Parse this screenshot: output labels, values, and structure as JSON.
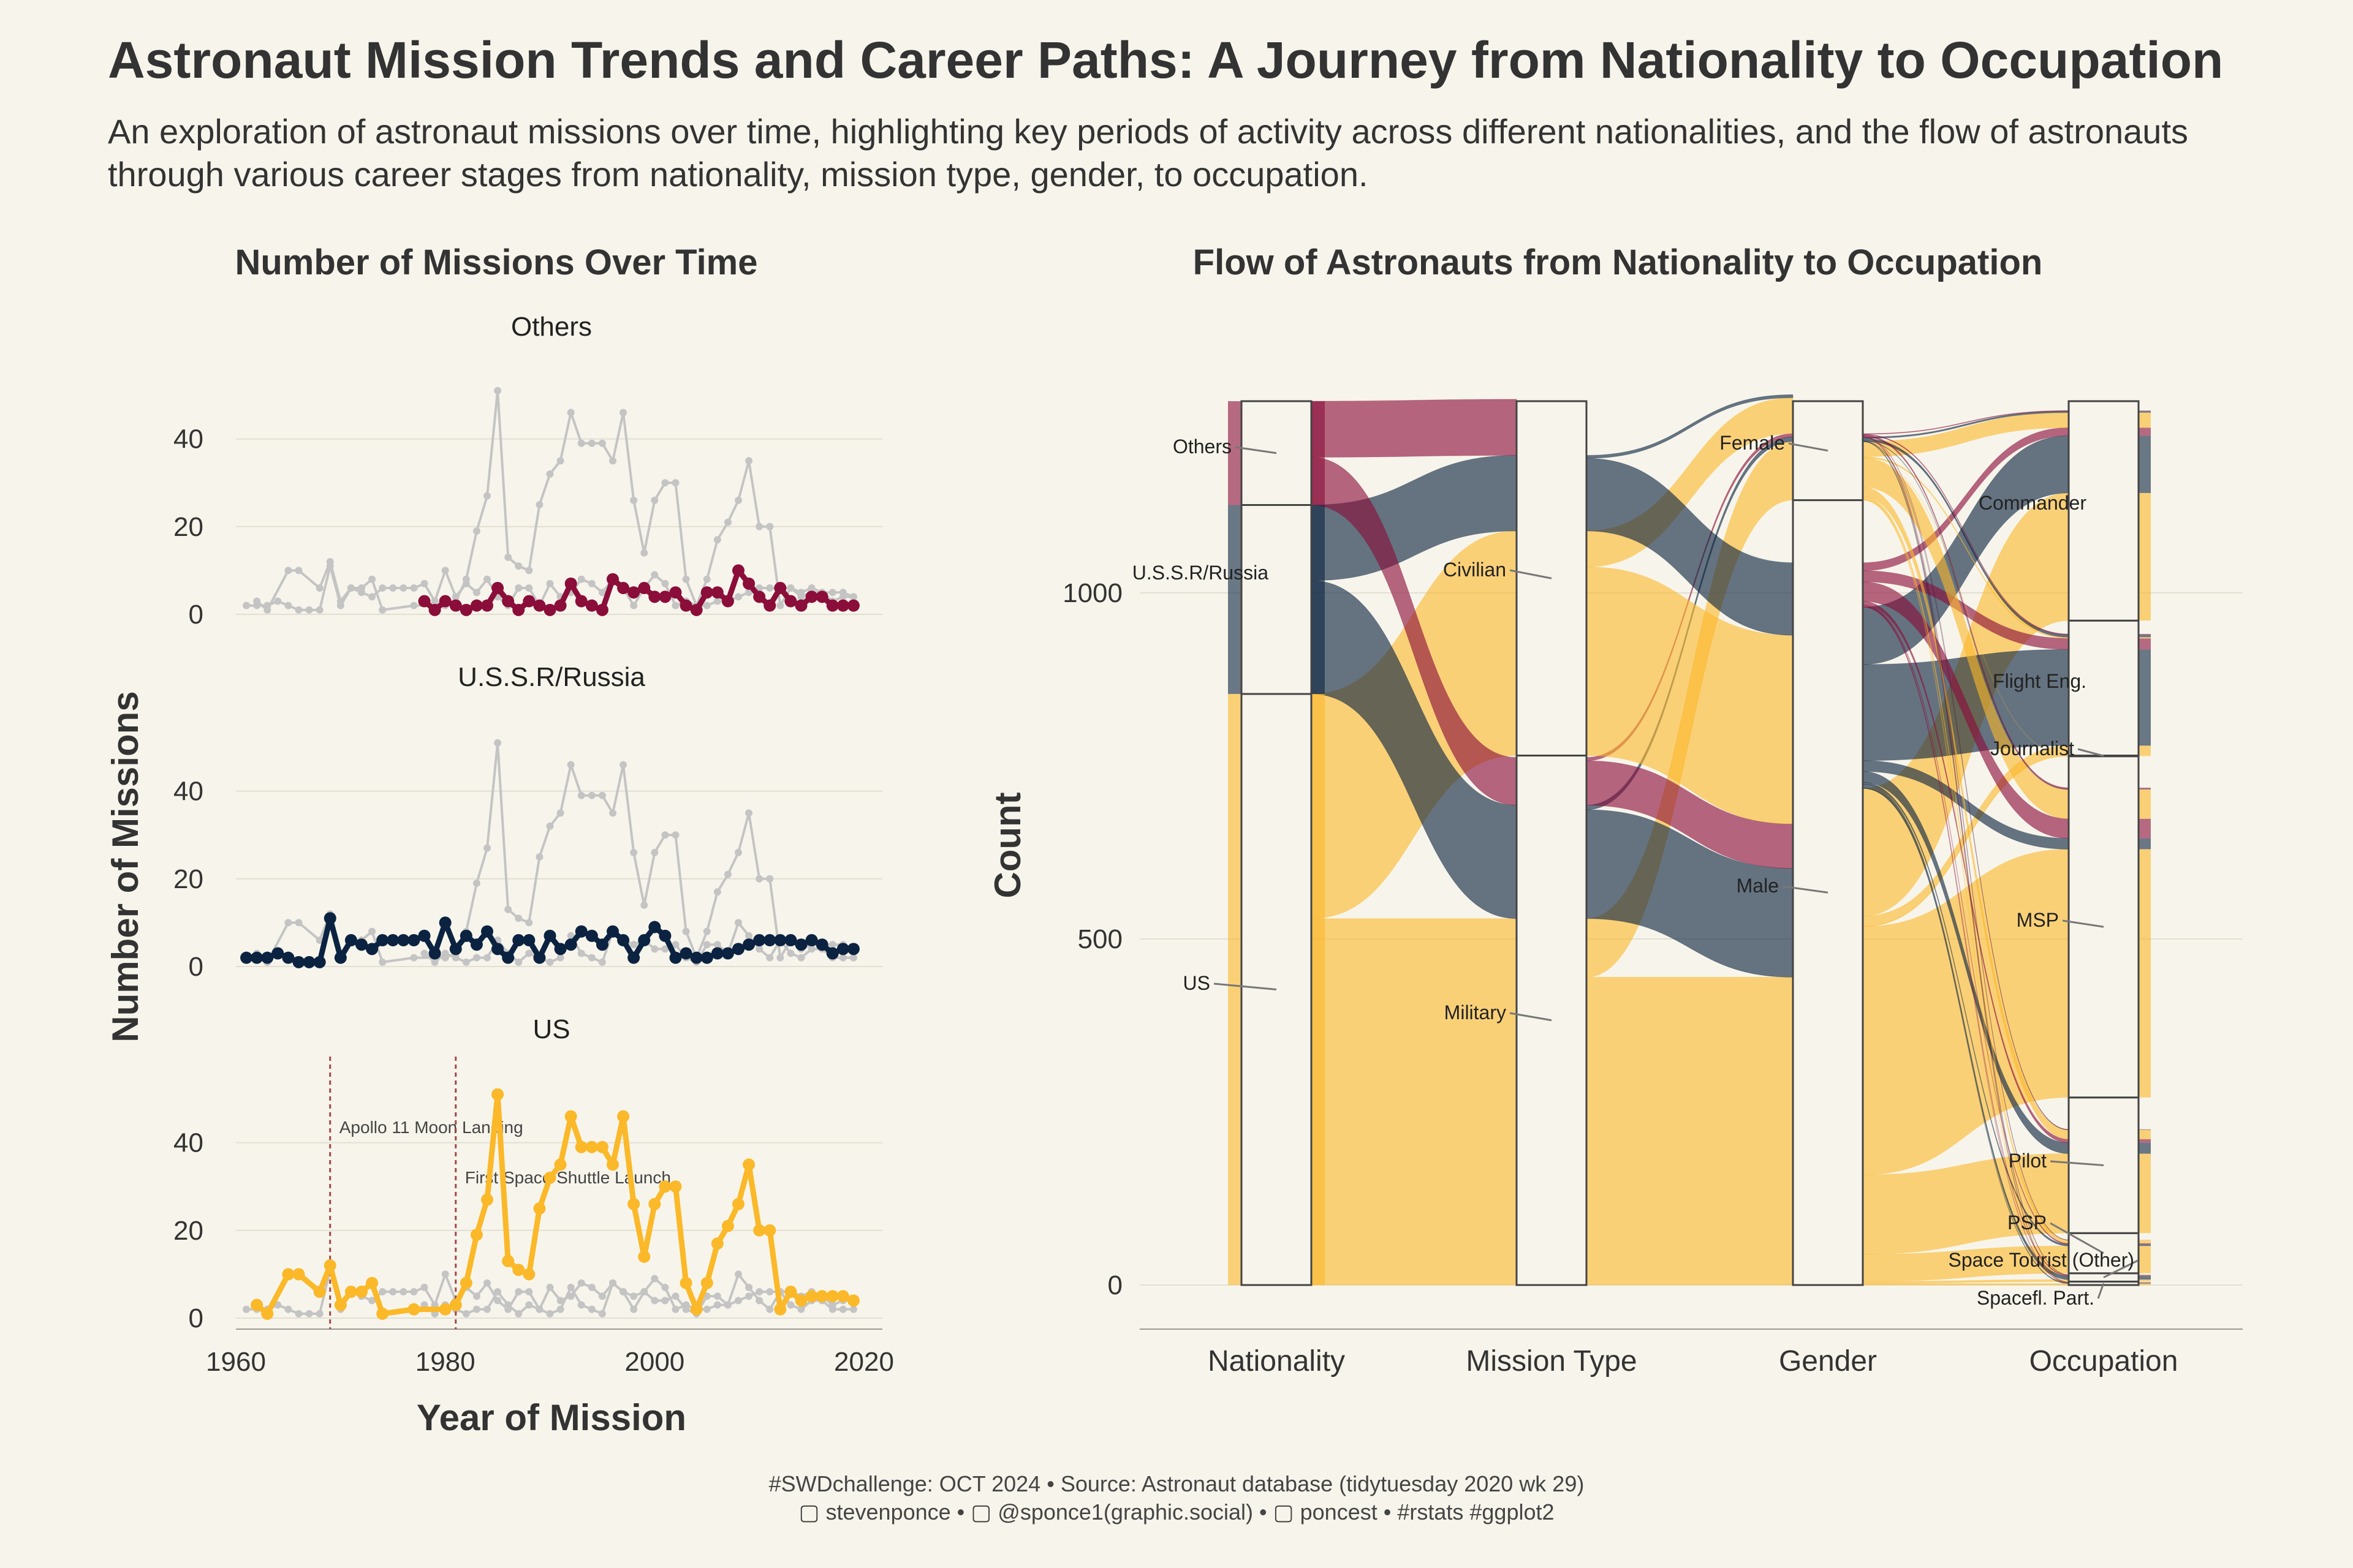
{
  "header": {
    "title": "Astronaut Mission Trends and Career Paths: A Journey from Nationality to Occupation",
    "subtitle": "An exploration of astronaut missions over time, highlighting key periods of activity across different nationalities, and the flow of astronauts through various career stages from nationality, mission type, gender, to occupation."
  },
  "caption": {
    "line1": "#SWDchallenge: OCT 2024 • Source: Astronaut database (tidytuesday 2020 wk 29)",
    "line2": "▢ stevenponce • ▢ @sponce1(graphic.social) • ▢ poncest • #rstats #ggplot2"
  },
  "colors": {
    "Others": "#8b0d3a",
    "U.S.S.R/Russia": "#0b2341",
    "US": "#fbb829",
    "background_series": "#c4c4c4",
    "annotation_line": "#a0484a",
    "background": "#f7f5eb"
  },
  "chart_data": [
    {
      "type": "line",
      "title": "Number of Missions Over Time",
      "xlabel": "Year of Mission",
      "ylabel": "Number of Missions",
      "xlim": [
        1960,
        2020
      ],
      "ylim": [
        0,
        50
      ],
      "xticks": [
        "1960",
        "1980",
        "2000",
        "2020"
      ],
      "yticks": [
        "0",
        "20",
        "40"
      ],
      "facets": [
        "Others",
        "U.S.S.R/Russia",
        "US"
      ],
      "series": [
        {
          "name": "Others",
          "x": [
            1978,
            1979,
            1980,
            1981,
            1982,
            1983,
            1984,
            1985,
            1986,
            1987,
            1988,
            1989,
            1990,
            1991,
            1992,
            1993,
            1994,
            1995,
            1996,
            1997,
            1998,
            1999,
            2000,
            2001,
            2002,
            2003,
            2004,
            2005,
            2006,
            2007,
            2008,
            2009,
            2010,
            2011,
            2012,
            2013,
            2014,
            2015,
            2016,
            2017,
            2018,
            2019
          ],
          "y": [
            3,
            1,
            3,
            2,
            1,
            2,
            2,
            6,
            3,
            1,
            3,
            2,
            1,
            2,
            7,
            3,
            2,
            1,
            8,
            6,
            5,
            6,
            4,
            4,
            5,
            2,
            1,
            5,
            5,
            3,
            10,
            7,
            4,
            2,
            6,
            3,
            2,
            4,
            4,
            2,
            2,
            2
          ]
        },
        {
          "name": "U.S.S.R/Russia",
          "x": [
            1961,
            1962,
            1963,
            1964,
            1965,
            1966,
            1967,
            1968,
            1969,
            1970,
            1971,
            1972,
            1973,
            1974,
            1975,
            1976,
            1977,
            1978,
            1979,
            1980,
            1981,
            1982,
            1983,
            1984,
            1985,
            1986,
            1987,
            1988,
            1989,
            1990,
            1991,
            1992,
            1993,
            1994,
            1995,
            1996,
            1997,
            1998,
            1999,
            2000,
            2001,
            2002,
            2003,
            2004,
            2005,
            2006,
            2007,
            2008,
            2009,
            2010,
            2011,
            2012,
            2013,
            2014,
            2015,
            2016,
            2017,
            2018,
            2019
          ],
          "y": [
            2,
            2,
            2,
            3,
            2,
            1,
            1,
            1,
            11,
            2,
            6,
            5,
            4,
            6,
            6,
            6,
            6,
            7,
            3,
            10,
            4,
            7,
            5,
            8,
            4,
            2,
            6,
            6,
            2,
            7,
            4,
            5,
            8,
            7,
            5,
            8,
            6,
            2,
            6,
            9,
            7,
            2,
            3,
            2,
            2,
            3,
            3,
            4,
            5,
            6,
            6,
            6,
            6,
            5,
            6,
            5,
            3,
            4,
            4
          ]
        },
        {
          "name": "US",
          "x": [
            1962,
            1963,
            1965,
            1966,
            1968,
            1969,
            1970,
            1971,
            1972,
            1973,
            1974,
            1977,
            1980,
            1981,
            1982,
            1983,
            1984,
            1985,
            1986,
            1987,
            1988,
            1989,
            1990,
            1991,
            1992,
            1993,
            1994,
            1995,
            1996,
            1997,
            1998,
            1999,
            2000,
            2001,
            2002,
            2003,
            2004,
            2005,
            2006,
            2007,
            2008,
            2009,
            2010,
            2011,
            2012,
            2013,
            2014,
            2015,
            2016,
            2017,
            2018,
            2019
          ],
          "y": [
            3,
            1,
            10,
            10,
            6,
            12,
            3,
            6,
            6,
            8,
            1,
            2,
            2,
            3,
            8,
            19,
            27,
            51,
            13,
            11,
            10,
            25,
            32,
            35,
            46,
            39,
            39,
            39,
            35,
            46,
            26,
            14,
            26,
            30,
            30,
            8,
            2,
            8,
            17,
            21,
            26,
            35,
            20,
            20,
            2,
            6,
            4,
            5,
            5,
            5,
            5,
            4
          ]
        }
      ],
      "annotations": [
        {
          "x": 1969,
          "label": "Apollo 11 Moon Landing",
          "facet": "US"
        },
        {
          "x": 1981,
          "label": "First Space Shuttle Launch",
          "facet": "US"
        }
      ]
    },
    {
      "type": "sankey",
      "title": "Flow of Astronauts from Nationality to Occupation",
      "ylabel": "Count",
      "ylim": [
        0,
        1277
      ],
      "yticks": [
        "0",
        "500",
        "1000"
      ],
      "stages": [
        "Nationality",
        "Mission Type",
        "Gender",
        "Occupation"
      ],
      "nodes": {
        "Nationality": [
          {
            "name": "US",
            "value": 854
          },
          {
            "name": "U.S.S.R/Russia",
            "value": 273
          },
          {
            "name": "Others",
            "value": 150
          }
        ],
        "Mission Type": [
          {
            "name": "Military",
            "value": 765
          },
          {
            "name": "Civilian",
            "value": 512
          }
        ],
        "Gender": [
          {
            "name": "Male",
            "value": 1134
          },
          {
            "name": "Female",
            "value": 143
          }
        ],
        "Occupation": [
          {
            "name": "Spacefl. Part.",
            "value": 5
          },
          {
            "name": "Space Tourist (Other)",
            "value": 12
          },
          {
            "name": "PSP",
            "value": 58
          },
          {
            "name": "Pilot",
            "value": 196
          },
          {
            "name": "MSP",
            "value": 493
          },
          {
            "name": "Journalist",
            "value": 1
          },
          {
            "name": "Flight Eng.",
            "value": 195
          },
          {
            "name": "Commander",
            "value": 317
          }
        ]
      },
      "flow_colors_by": "Nationality"
    }
  ]
}
